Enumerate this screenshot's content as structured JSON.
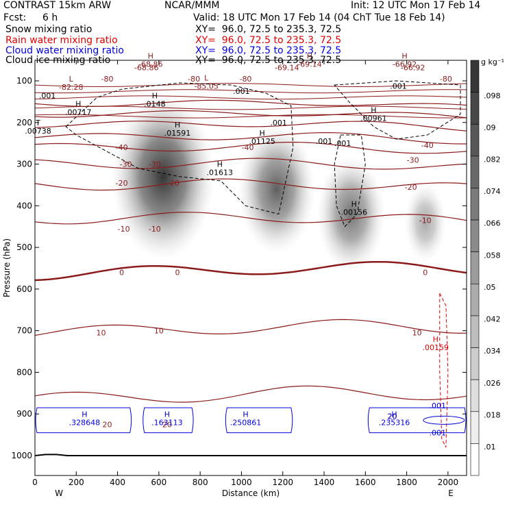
{
  "header": {
    "title": "CONTRAST 15km ARW",
    "center": "NCAR/MMM",
    "init": "Init: 12 UTC Mon 17 Feb 14",
    "fcst_label": "Fcst:",
    "fcst_value": "6 h",
    "valid": "Valid: 18 UTC Mon 17 Feb 14 (04 ChT Tue 18 Feb 14)"
  },
  "fields": [
    {
      "name": "Snow mixing ratio",
      "xy": "XY=  96.0, 72.5 to 235.3, 72.5",
      "color": "#000000"
    },
    {
      "name": "Rain water mixing ratio",
      "xy": "XY=  96.0, 72.5 to 235.3, 72.5",
      "color": "#e00000"
    },
    {
      "name": "Cloud water mixing ratio",
      "xy": "XY=  96.0, 72.5 to 235.3, 72.5",
      "color": "#0000e0"
    },
    {
      "name": "Cloud ice mixing ratio",
      "xy": "XY=  96.0, 72.5 to 235.3, 72.5",
      "color": "#000000"
    }
  ],
  "colorbar": {
    "unit": "g kg⁻¹",
    "labels": [
      ".098",
      ".09",
      ".082",
      ".074",
      ".066",
      ".058",
      ".05",
      ".042",
      ".034",
      ".026",
      ".018",
      ".01"
    ]
  },
  "chart_data": {
    "type": "heatmap",
    "xlabel": "Distance (km)",
    "ylabel": "Pressure (hPa)",
    "xlim": [
      0,
      2090
    ],
    "ylim": [
      1050,
      50
    ],
    "x_ticks": [
      "0",
      "200",
      "400",
      "600",
      "800",
      "1000",
      "1200",
      "1400",
      "1600",
      "1800",
      "2000"
    ],
    "y_ticks": [
      "100",
      "200",
      "300",
      "400",
      "500",
      "600",
      "700",
      "800",
      "900",
      "1000"
    ],
    "x_ends": {
      "left": "W",
      "right": "E"
    },
    "isotherm_labels": [
      "-80",
      "-80",
      "-80",
      "-80",
      "-40",
      "-40",
      "-40",
      "-30",
      "-30",
      "-30",
      "-20",
      "-20",
      "-20",
      "-10",
      "-10",
      "-10",
      "0",
      "0",
      "0",
      "10",
      "10",
      "10",
      "20",
      "20",
      "20",
      "-68.86",
      "-69.14",
      "-66.92"
    ],
    "temperature_levels_degC": [
      -80,
      -70,
      -60,
      -50,
      -40,
      -30,
      -20,
      -10,
      0,
      10,
      20
    ],
    "extrema": [
      {
        "kind": "L",
        "value": "-82.28",
        "x": 175,
        "p": 115
      },
      {
        "kind": "H",
        "value": "-68.86",
        "x": 560,
        "p": 60
      },
      {
        "kind": "L",
        "value": "-85.05",
        "x": 830,
        "p": 112
      },
      {
        "kind": "H",
        "value": "-69.14",
        "x": 1330,
        "p": 60
      },
      {
        "kind": "H",
        "value": "-66.92",
        "x": 1790,
        "p": 60
      },
      {
        "kind": "H",
        "value": ".00717",
        "x": 210,
        "p": 175,
        "field": "snow"
      },
      {
        "kind": "H",
        "value": ".0148",
        "x": 580,
        "p": 155,
        "field": "snow"
      },
      {
        "kind": "H",
        "value": ".00961",
        "x": 1640,
        "p": 190,
        "field": "snow"
      },
      {
        "kind": "T",
        "value": ".00738",
        "x": 15,
        "p": 220,
        "field": "snow"
      },
      {
        "kind": "H",
        "value": ".01591",
        "x": 690,
        "p": 225,
        "field": "snow"
      },
      {
        "kind": "H",
        "value": ".01125",
        "x": 1100,
        "p": 245,
        "field": "snow"
      },
      {
        "kind": "H",
        "value": ".01613",
        "x": 895,
        "p": 320,
        "field": "snow"
      },
      {
        "kind": "H",
        "value": ".00156",
        "x": 1545,
        "p": 415,
        "field": "snow"
      },
      {
        "kind": "H",
        "value": ".00159",
        "x": 1940,
        "p": 740,
        "field": "rain"
      },
      {
        "kind": "H",
        "value": ".328648",
        "x": 240,
        "p": 920,
        "field": "cloud_water"
      },
      {
        "kind": "H",
        "value": ".163113",
        "x": 640,
        "p": 920,
        "field": "cloud_water"
      },
      {
        "kind": "H",
        "value": ".250861",
        "x": 1020,
        "p": 920,
        "field": "cloud_water"
      },
      {
        "kind": "H",
        "value": ".235316",
        "x": 1740,
        "p": 920,
        "field": "cloud_water"
      }
    ],
    "contour_level_labels": [
      ".001",
      ".001",
      ".001",
      ".001",
      ".001",
      ".001",
      ".001",
      ".001",
      "20"
    ],
    "snow_maxima": [
      {
        "x": 620,
        "p": 330,
        "value": 0.09
      },
      {
        "x": 1170,
        "p": 360,
        "value": 0.06
      },
      {
        "x": 1530,
        "p": 420,
        "value": 0.05
      },
      {
        "x": 1890,
        "p": 440,
        "value": 0.02
      }
    ]
  }
}
